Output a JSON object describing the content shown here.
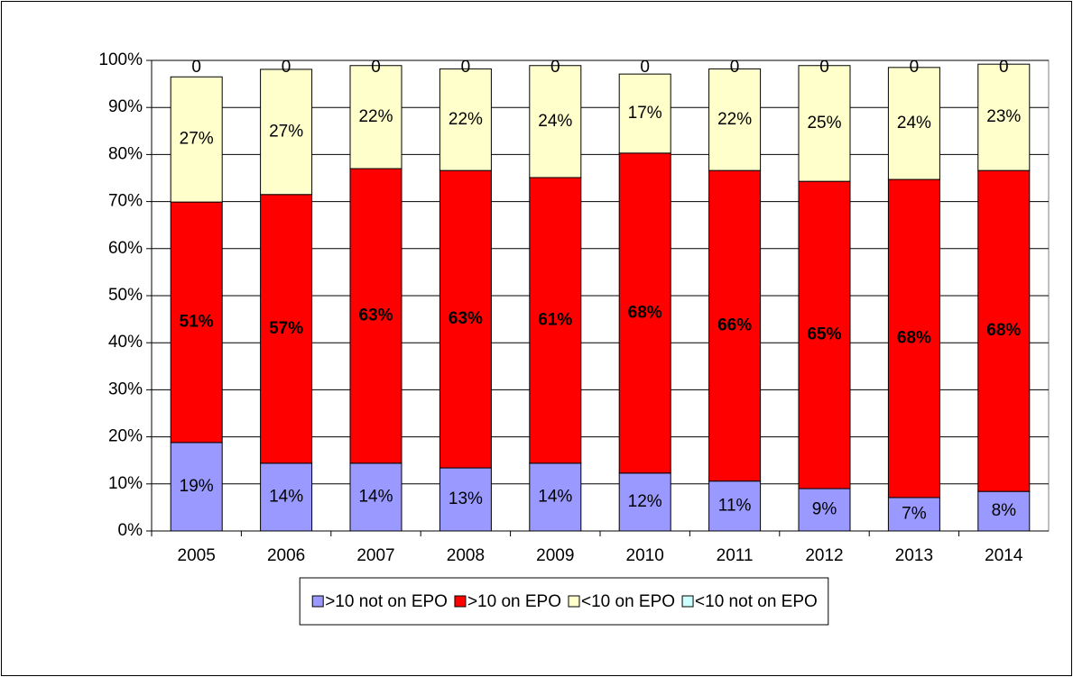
{
  "chart_data": {
    "type": "stacked_bar",
    "categories": [
      "2005",
      "2006",
      "2007",
      "2008",
      "2009",
      "2010",
      "2011",
      "2012",
      "2013",
      "2014"
    ],
    "series": [
      {
        "name": ">10 not on EPO",
        "color": "#9999ff",
        "label_color": "#ffffff",
        "label_bold": false,
        "values": [
          18.8,
          14.4,
          14.4,
          13.4,
          14.4,
          12.3,
          10.6,
          9.0,
          7.1,
          8.4
        ],
        "value_labels": [
          "19%",
          "14%",
          "14%",
          "13%",
          "14%",
          "12%",
          "11%",
          "9%",
          "7%",
          "8%"
        ]
      },
      {
        "name": ">10 on EPO",
        "color": "#ff0000",
        "label_color": "#ffffff",
        "label_bold": true,
        "values": [
          51.1,
          57.1,
          62.6,
          63.2,
          60.7,
          68.0,
          66.0,
          65.3,
          67.6,
          68.2
        ],
        "value_labels": [
          "51%",
          "57%",
          "63%",
          "63%",
          "61%",
          "68%",
          "66%",
          "65%",
          "68%",
          "68%"
        ]
      },
      {
        "name": "<10 on EPO",
        "color": "#ffffcc",
        "label_color": "#000000",
        "label_bold": false,
        "values": [
          26.6,
          26.6,
          21.9,
          21.6,
          23.8,
          16.8,
          21.6,
          24.6,
          23.8,
          22.6
        ],
        "value_labels": [
          "27%",
          "27%",
          "22%",
          "22%",
          "24%",
          "17%",
          "22%",
          "25%",
          "24%",
          "23%"
        ]
      },
      {
        "name": "<10 not on EPO",
        "color": "#ccffff",
        "label_color": "#000000",
        "label_bold": false,
        "values": [
          0,
          0,
          0,
          0,
          0,
          0,
          0,
          0,
          0,
          0
        ]
      }
    ],
    "ylim": [
      0,
      100
    ],
    "yticks": [
      {
        "value": 0,
        "label": "0%"
      },
      {
        "value": 10,
        "label": "10%"
      },
      {
        "value": 20,
        "label": "20%"
      },
      {
        "value": 30,
        "label": "30%"
      },
      {
        "value": 40,
        "label": "40%"
      },
      {
        "value": 50,
        "label": "50%"
      },
      {
        "value": 60,
        "label": "60%"
      },
      {
        "value": 70,
        "label": "70%"
      },
      {
        "value": 80,
        "label": "80%"
      },
      {
        "value": 90,
        "label": "90%"
      },
      {
        "value": 100,
        "label": "100%"
      }
    ],
    "grid": true,
    "legend": "bottom"
  }
}
